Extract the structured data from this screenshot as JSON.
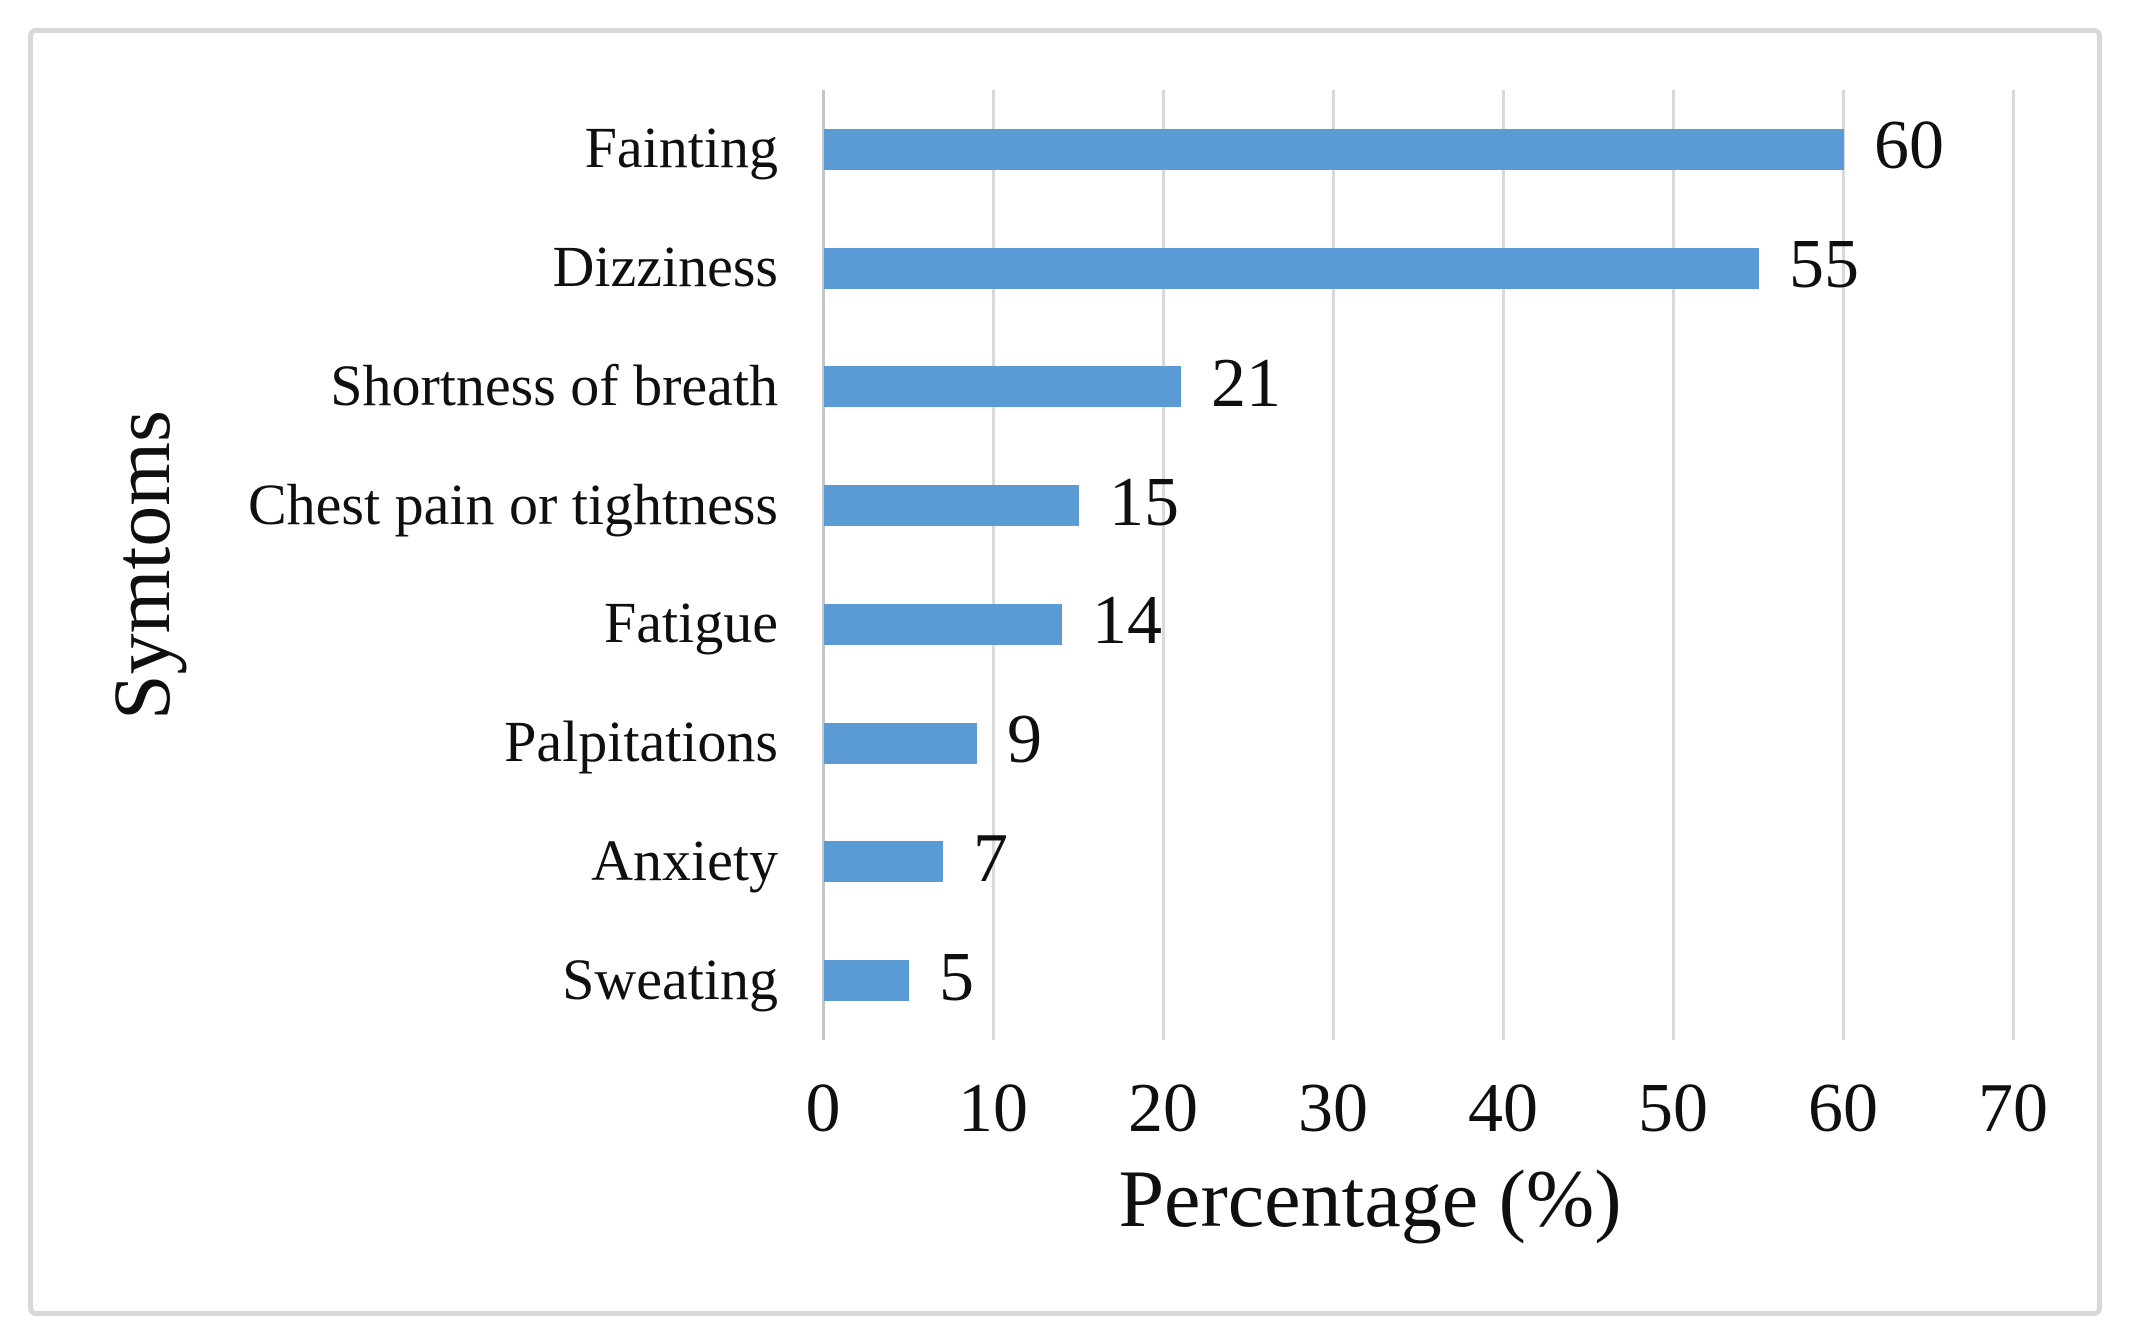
{
  "chart_data": {
    "type": "bar",
    "orientation": "horizontal",
    "title": "",
    "categories": [
      "Fainting",
      "Dizziness",
      "Shortness of breath",
      "Chest pain or tightness",
      "Fatigue",
      "Palpitations",
      "Anxiety",
      "Sweating"
    ],
    "values": [
      60,
      55,
      21,
      15,
      14,
      9,
      7,
      5
    ],
    "data_labels_shown": true,
    "xlabel": "Percentage (%)",
    "ylabel": "Symtoms",
    "xlim": [
      0,
      70
    ],
    "xticks": [
      0,
      10,
      20,
      30,
      40,
      50,
      60,
      70
    ],
    "grid": true,
    "legend": "none",
    "colors": {
      "bar": "#5B9BD5",
      "gridline": "#D9D9D9",
      "axis_line": "#C4C4C4",
      "text": "#0F0F0F",
      "frame_border": "#D8D8D8",
      "background": "#FFFFFF"
    }
  }
}
